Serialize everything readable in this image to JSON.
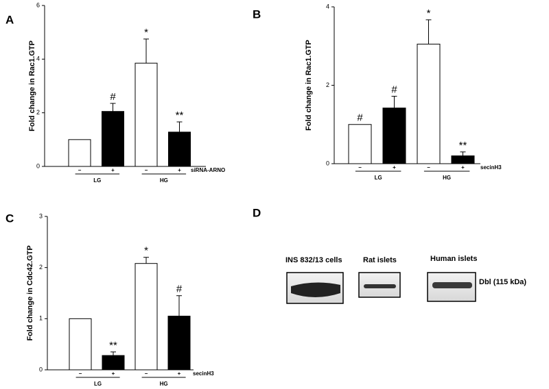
{
  "chart_data": [
    {
      "type": "bar",
      "panel": "A",
      "ylabel": "Fold change in Rac1.GTP",
      "categories": [
        "−",
        "+",
        "−",
        "+"
      ],
      "groups": [
        "LG",
        "HG"
      ],
      "treatment": "siRNA-ARNO",
      "values": [
        1,
        2.05,
        3.85,
        1.28
      ],
      "errors": [
        null,
        0.3,
        0.9,
        0.38
      ],
      "annotations": [
        null,
        "#",
        "*",
        "**"
      ],
      "colors": [
        "#ffffff",
        "#000000",
        "#ffffff",
        "#000000"
      ],
      "ylim": [
        0,
        6
      ],
      "yticks": [
        0,
        2,
        4,
        6
      ]
    },
    {
      "type": "bar",
      "panel": "B",
      "ylabel": "Fold change in Rac1.GTP",
      "categories": [
        "−",
        "+",
        "−",
        "+"
      ],
      "groups": [
        "LG",
        "HG"
      ],
      "treatment": "secinH3",
      "values": [
        1,
        1.42,
        3.05,
        0.2
      ],
      "errors": [
        null,
        0.3,
        0.62,
        0.1
      ],
      "annotations": [
        "#",
        "#",
        "*",
        "**"
      ],
      "colors": [
        "#ffffff",
        "#000000",
        "#ffffff",
        "#000000"
      ],
      "ylim": [
        0,
        4
      ],
      "yticks": [
        0,
        2,
        4
      ]
    },
    {
      "type": "bar",
      "panel": "C",
      "ylabel": "Fold change in Cdc42.GTP",
      "categories": [
        "−",
        "+",
        "−",
        "+"
      ],
      "groups": [
        "LG",
        "HG"
      ],
      "treatment": "secinH3",
      "values": [
        1,
        0.28,
        2.08,
        1.05
      ],
      "errors": [
        null,
        0.07,
        0.12,
        0.4
      ],
      "annotations": [
        null,
        "**",
        "*",
        "#"
      ],
      "colors": [
        "#ffffff",
        "#000000",
        "#ffffff",
        "#000000"
      ],
      "ylim": [
        0,
        3
      ],
      "yticks": [
        0,
        1,
        2,
        3
      ]
    }
  ],
  "panel_d": {
    "panel": "D",
    "lanes": [
      "INS 832/13 cells",
      "Rat islets",
      "Human islets"
    ],
    "band_label": "Dbl (115 kDa)"
  }
}
